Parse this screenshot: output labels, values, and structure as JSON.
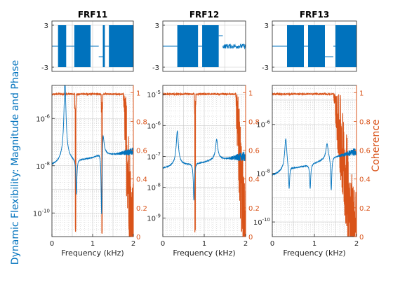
{
  "colors": {
    "magnitude": "#0072BD",
    "coherence": "#D95319",
    "axis": "#262626",
    "grid": "#c8c8c8"
  },
  "left_label": "Dynamic Flexibility: Magnitude and Phase",
  "right_label": "Coherence",
  "xlabel": "Frequency (kHz)",
  "chart_data": [
    {
      "title": "FRF11",
      "type": "line",
      "xlim": [
        0,
        2
      ],
      "phase": {
        "ylim": [
          -3.6,
          3.6
        ],
        "yticks": [
          "3",
          "-3"
        ],
        "xticks": [
          0,
          0.5,
          1,
          1.5,
          2
        ],
        "segments": [
          [
            0.0,
            0.15,
            "flat0"
          ],
          [
            0.15,
            0.35,
            "band"
          ],
          [
            0.35,
            0.55,
            "flat0"
          ],
          [
            0.55,
            0.95,
            "band"
          ],
          [
            0.95,
            1.15,
            "flat0"
          ],
          [
            1.15,
            1.25,
            "low"
          ],
          [
            1.25,
            1.3,
            "band"
          ],
          [
            1.3,
            1.4,
            "flat0"
          ],
          [
            1.4,
            2.0,
            "band"
          ]
        ]
      },
      "magnitude": {
        "scale": "log",
        "ylim_exp": [
          -11,
          -4.6
        ],
        "ytick_exps": [
          -10,
          -8,
          -6
        ],
        "base_exp": -7.7,
        "base_slope": 0.3,
        "resonances": [
          [
            0.32,
            3.0
          ],
          [
            1.25,
            1.2
          ]
        ],
        "antiresonances": [
          [
            0.6,
            -1.5
          ],
          [
            1.22,
            -3.2
          ]
        ]
      },
      "coherence": {
        "ylim": [
          0,
          1.05
        ],
        "yticks": [
          0,
          0.2,
          0.4,
          0.6,
          0.8,
          1
        ],
        "dips_at": [
          0.58,
          1.23
        ],
        "dropoff_at": 1.75
      }
    },
    {
      "title": "FRF12",
      "type": "line",
      "xlim": [
        0,
        2
      ],
      "phase": {
        "ylim": [
          -3.6,
          3.6
        ],
        "yticks": [
          "3",
          "-3"
        ],
        "xticks": [
          0,
          0.5,
          1,
          1.5,
          2
        ],
        "segments": [
          [
            0.0,
            0.35,
            "flat0"
          ],
          [
            0.35,
            0.85,
            "band"
          ],
          [
            0.85,
            0.95,
            "flat0"
          ],
          [
            0.95,
            1.35,
            "band"
          ],
          [
            1.35,
            1.45,
            "mid"
          ],
          [
            1.45,
            2.0,
            "noisy0"
          ]
        ]
      },
      "magnitude": {
        "scale": "log",
        "ylim_exp": [
          -9.6,
          -4.7
        ],
        "ytick_exps": [
          -9,
          -8,
          -7,
          -6,
          -5
        ],
        "base_exp": -7.2,
        "base_slope": 0.2,
        "resonances": [
          [
            0.35,
            1.0
          ],
          [
            1.3,
            0.6
          ]
        ],
        "antiresonances": [
          [
            0.75,
            -1.2
          ]
        ]
      },
      "coherence": {
        "ylim": [
          0,
          1.05
        ],
        "yticks": [
          0,
          0.2,
          0.4,
          0.6,
          0.8,
          1
        ],
        "dips_at": [
          0.78
        ],
        "dropoff_at": 1.75
      }
    },
    {
      "title": "FRF13",
      "type": "line",
      "xlim": [
        0,
        2
      ],
      "phase": {
        "ylim": [
          -3.6,
          3.6
        ],
        "yticks": [
          "3",
          "-3"
        ],
        "xticks": [
          0,
          0.5,
          1,
          1.5,
          2
        ],
        "segments": [
          [
            0.0,
            0.35,
            "flat0"
          ],
          [
            0.35,
            0.75,
            "band"
          ],
          [
            0.75,
            0.85,
            "flat0"
          ],
          [
            0.85,
            1.25,
            "band"
          ],
          [
            1.25,
            1.45,
            "low"
          ],
          [
            1.45,
            1.5,
            "flat0"
          ],
          [
            1.5,
            2.0,
            "band"
          ]
        ]
      },
      "magnitude": {
        "scale": "log",
        "ylim_exp": [
          -10.6,
          -4.4
        ],
        "ytick_exps": [
          -10,
          -8,
          -6
        ],
        "base_exp": -7.6,
        "base_slope": 0.5,
        "resonances": [
          [
            0.32,
            1.2
          ],
          [
            1.3,
            0.6
          ]
        ],
        "antiresonances": [
          [
            0.4,
            -1.0
          ],
          [
            0.9,
            -1.0
          ],
          [
            1.4,
            -1.4
          ]
        ]
      },
      "coherence": {
        "ylim": [
          0,
          1.05
        ],
        "yticks": [
          0,
          0.2,
          0.4,
          0.6,
          0.8,
          1
        ],
        "dips_at": [],
        "dropoff_at": 1.45
      }
    }
  ]
}
